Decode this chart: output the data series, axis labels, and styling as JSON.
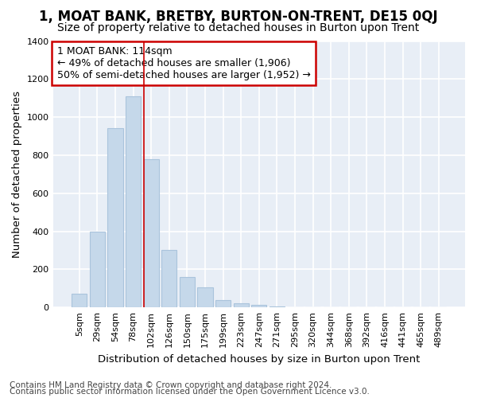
{
  "title": "1, MOAT BANK, BRETBY, BURTON-ON-TRENT, DE15 0QJ",
  "subtitle": "Size of property relative to detached houses in Burton upon Trent",
  "xlabel": "Distribution of detached houses by size in Burton upon Trent",
  "ylabel": "Number of detached properties",
  "footnote1": "Contains HM Land Registry data © Crown copyright and database right 2024.",
  "footnote2": "Contains public sector information licensed under the Open Government Licence v3.0.",
  "annotation_line1": "1 MOAT BANK: 114sqm",
  "annotation_line2": "← 49% of detached houses are smaller (1,906)",
  "annotation_line3": "50% of semi-detached houses are larger (1,952) →",
  "bar_labels": [
    "5sqm",
    "29sqm",
    "54sqm",
    "78sqm",
    "102sqm",
    "126sqm",
    "150sqm",
    "175sqm",
    "199sqm",
    "223sqm",
    "247sqm",
    "271sqm",
    "295sqm",
    "320sqm",
    "344sqm",
    "368sqm",
    "392sqm",
    "416sqm",
    "441sqm",
    "465sqm",
    "489sqm"
  ],
  "bar_values": [
    70,
    400,
    940,
    1110,
    780,
    300,
    160,
    105,
    38,
    20,
    15,
    5,
    2,
    1,
    1,
    1,
    1,
    1,
    1,
    1,
    1
  ],
  "bar_color": "#c5d8ea",
  "bar_edge_color": "#aac4dc",
  "vline_color": "#cc0000",
  "vline_index": 4,
  "annotation_box_edge_color": "#cc0000",
  "annotation_box_face_color": "#ffffff",
  "ylim": [
    0,
    1400
  ],
  "yticks": [
    0,
    200,
    400,
    600,
    800,
    1000,
    1200,
    1400
  ],
  "background_color": "#ffffff",
  "plot_bg_color": "#e8eef6",
  "grid_color": "#ffffff",
  "title_fontsize": 12,
  "subtitle_fontsize": 10,
  "axis_label_fontsize": 9.5,
  "tick_fontsize": 8,
  "annotation_fontsize": 9,
  "footnote_fontsize": 7.5
}
